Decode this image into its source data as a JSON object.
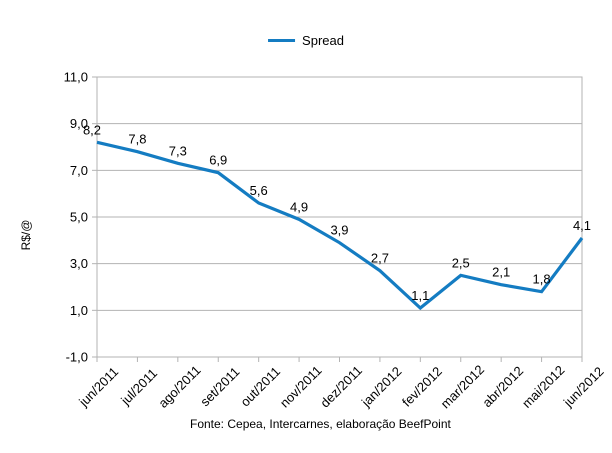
{
  "legend": {
    "label": "Spread"
  },
  "footer": {
    "source": "Fonte: Cepea, Intercarnes, elaboração BeefPoint"
  },
  "chart_data": {
    "type": "line",
    "title": "",
    "categories": [
      "jun/2011",
      "jul/2011",
      "ago/2011",
      "set/2011",
      "out/2011",
      "nov/2011",
      "dez/2011",
      "jan/2012",
      "fev/2012",
      "mar/2012",
      "abr/2012",
      "mai/2012",
      "jun/2012"
    ],
    "series": [
      {
        "name": "Spread",
        "values": [
          8.2,
          7.8,
          7.3,
          6.9,
          5.6,
          4.9,
          3.9,
          2.7,
          1.1,
          2.5,
          2.1,
          1.8,
          4.1
        ]
      }
    ],
    "data_labels": [
      "8,2",
      "7,8",
      "7,3",
      "6,9",
      "5,6",
      "4,9",
      "3,9",
      "2,7",
      "1,1",
      "2,5",
      "2,1",
      "1,8",
      "4,1"
    ],
    "xlabel": "",
    "ylabel": "R$/@",
    "ylim": [
      -1.0,
      11.0
    ],
    "ytick_values": [
      11,
      9,
      7,
      5,
      3,
      1,
      -1
    ],
    "ytick_labels": [
      "11,0",
      "9,0",
      "7,0",
      "5,0",
      "3,0",
      "1,0",
      "-1,0"
    ],
    "grid": "horizontal",
    "legend_position": "top-center",
    "colors": {
      "line": "#147cc2",
      "axis": "#b3b3b3",
      "text": "#000000",
      "background": "#ffffff"
    }
  }
}
